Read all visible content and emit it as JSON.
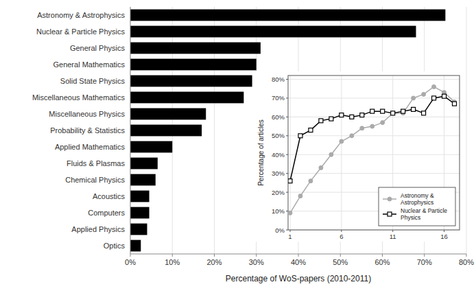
{
  "chart_data": [
    {
      "type": "bar",
      "orientation": "horizontal",
      "categories": [
        "Astronomy & Astrophysics",
        "Nuclear & Particle Physics",
        "General Physics",
        "General Mathematics",
        "Solid State Physics",
        "Miscellaneous Mathematics",
        "Miscellaneous Physics",
        "Probability & Statistics",
        "Applied Mathematics",
        "Fluids & Plasmas",
        "Chemical Physics",
        "Acoustics",
        "Computers",
        "Applied Physics",
        "Optics"
      ],
      "values": [
        75,
        68,
        31,
        30,
        29,
        27,
        18,
        17,
        10,
        6.5,
        6,
        4.5,
        4.5,
        4,
        2.5
      ],
      "color": "#000000",
      "xlabel": "Percentage of WoS-papers (2010-2011)",
      "xlim": [
        0,
        80
      ],
      "xticks": [
        {
          "value": 0,
          "label": "0%"
        },
        {
          "value": 10,
          "label": "10%"
        },
        {
          "value": 20,
          "label": "20%"
        },
        {
          "value": 30,
          "label": "30%"
        },
        {
          "value": 40,
          "label": "40%"
        },
        {
          "value": 50,
          "label": "50%"
        },
        {
          "value": 60,
          "label": "60%"
        },
        {
          "value": 70,
          "label": "70%"
        },
        {
          "value": 80,
          "label": "80%"
        }
      ],
      "grid": true
    },
    {
      "type": "line",
      "x": [
        1,
        2,
        3,
        4,
        5,
        6,
        7,
        8,
        9,
        10,
        11,
        12,
        13,
        14,
        15,
        16,
        17
      ],
      "series": [
        {
          "name": "Astronomy &\nAstrophysics",
          "color": "#aaaaaa",
          "marker": "circle",
          "values": [
            9,
            18,
            26,
            33,
            40,
            47,
            50,
            54,
            55,
            57,
            62,
            62,
            70,
            72,
            76,
            73,
            68
          ]
        },
        {
          "name": "Nuclear & Particle\nPhysics",
          "color": "#000000",
          "marker": "square",
          "values": [
            26,
            50,
            53,
            58,
            59,
            61,
            60,
            61,
            63,
            63,
            62,
            63,
            64,
            62,
            70,
            71,
            67
          ]
        }
      ],
      "ylabel": "Percentage of articles",
      "xlim": [
        0.8,
        17.5
      ],
      "xticks": [
        1,
        6,
        11,
        16
      ],
      "ylim": [
        0,
        82
      ],
      "yticks": [
        {
          "value": 0,
          "label": "0%"
        },
        {
          "value": 10,
          "label": "10%"
        },
        {
          "value": 20,
          "label": "20%"
        },
        {
          "value": 30,
          "label": "30%"
        },
        {
          "value": 40,
          "label": "40%"
        },
        {
          "value": 50,
          "label": "50%"
        },
        {
          "value": 60,
          "label": "60%"
        },
        {
          "value": 70,
          "label": "70%"
        },
        {
          "value": 80,
          "label": "80%"
        }
      ],
      "grid": true,
      "legend": "lower right"
    }
  ]
}
